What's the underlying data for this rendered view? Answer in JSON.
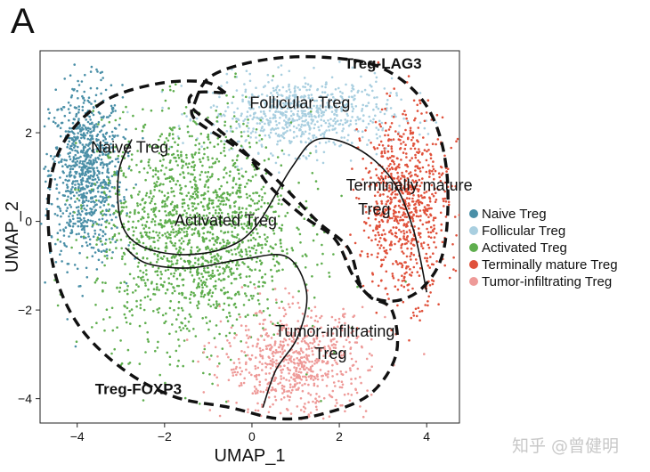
{
  "panel_label": "A",
  "watermark": "知乎 @曾健明",
  "chart_data": {
    "type": "scatter",
    "title": "",
    "xlabel": "UMAP_1",
    "ylabel": "UMAP_2",
    "xlim": [
      -4.85,
      4.75
    ],
    "ylim": [
      -4.55,
      3.85
    ],
    "xticks": [
      -4,
      -2,
      0,
      2,
      4
    ],
    "yticks": [
      -4,
      -2,
      0,
      2
    ],
    "xtick_labels": [
      "−4",
      "−2",
      "0",
      "2",
      "4"
    ],
    "ytick_labels": [
      "−4",
      "−2",
      "0",
      "2"
    ],
    "grid": false,
    "legend_position": "right",
    "series": [
      {
        "name": "Naive Treg",
        "color": "#4a8fa7",
        "center": [
          -3.8,
          1.1
        ],
        "spread": [
          0.55,
          1.3
        ],
        "count": 900
      },
      {
        "name": "Follicular Treg",
        "color": "#a9cfe0",
        "center": [
          1.1,
          2.4
        ],
        "spread": [
          1.4,
          0.55
        ],
        "count": 700
      },
      {
        "name": "Activated Treg",
        "color": "#5fae4e",
        "center": [
          -1.3,
          -0.2
        ],
        "spread": [
          1.5,
          1.7
        ],
        "count": 1700
      },
      {
        "name": "Terminally mature Treg",
        "color": "#e0513b",
        "center": [
          3.5,
          0.4
        ],
        "spread": [
          0.65,
          1.4
        ],
        "count": 800
      },
      {
        "name": "Tumor-infiltrating Treg",
        "color": "#ee9a98",
        "center": [
          1.0,
          -3.2
        ],
        "spread": [
          1.1,
          0.8
        ],
        "count": 700
      }
    ],
    "annotations": [
      {
        "text": "Follicular Treg",
        "x": 1.1,
        "y": 2.55
      },
      {
        "text": "Naive Treg",
        "x": -2.8,
        "y": 1.55
      },
      {
        "text": "Terminally mature",
        "x": 3.6,
        "y": 0.7
      },
      {
        "text": "Treg",
        "x": 2.8,
        "y": 0.15
      },
      {
        "text": "Activated Treg",
        "x": -0.6,
        "y": -0.1
      },
      {
        "text": "Tumor-infiltrating",
        "x": 1.9,
        "y": -2.6
      },
      {
        "text": "Treg",
        "x": 1.8,
        "y": -3.1
      },
      {
        "text": "Treg-LAG3",
        "x": 3.0,
        "y": 3.45,
        "bold": true
      },
      {
        "text": "Treg-FOXP3",
        "x": -2.6,
        "y": -3.9,
        "bold": true
      }
    ],
    "boundaries": [
      {
        "name": "Treg-LAG3",
        "points": [
          [
            -1.3,
            2.7
          ],
          [
            -0.9,
            3.3
          ],
          [
            0.3,
            3.65
          ],
          [
            1.7,
            3.7
          ],
          [
            3.0,
            3.45
          ],
          [
            4.0,
            2.6
          ],
          [
            4.45,
            1.2
          ],
          [
            4.4,
            -0.6
          ],
          [
            3.9,
            -1.5
          ],
          [
            3.2,
            -1.8
          ],
          [
            2.55,
            -1.55
          ],
          [
            2.2,
            -0.6
          ],
          [
            1.5,
            0.0
          ],
          [
            0.5,
            1.0
          ],
          [
            -0.4,
            1.7
          ],
          [
            -1.3,
            2.3
          ]
        ],
        "closed": true
      },
      {
        "name": "Treg-FOXP3",
        "points": [
          [
            -0.6,
            2.9
          ],
          [
            -1.1,
            3.15
          ],
          [
            -2.2,
            3.1
          ],
          [
            -3.4,
            2.7
          ],
          [
            -4.3,
            1.8
          ],
          [
            -4.65,
            0.6
          ],
          [
            -4.55,
            -1.0
          ],
          [
            -4.0,
            -2.3
          ],
          [
            -3.0,
            -3.3
          ],
          [
            -1.8,
            -3.95
          ],
          [
            -0.5,
            -4.2
          ],
          [
            0.6,
            -4.45
          ],
          [
            1.6,
            -4.35
          ],
          [
            2.7,
            -3.9
          ],
          [
            3.3,
            -3.0
          ],
          [
            3.2,
            -2.0
          ],
          [
            2.7,
            -1.7
          ],
          [
            2.3,
            -1.2
          ],
          [
            1.9,
            -0.4
          ],
          [
            1.2,
            0.1
          ],
          [
            0.4,
            0.8
          ],
          [
            -0.1,
            1.5
          ],
          [
            -0.8,
            2.1
          ],
          [
            -1.4,
            2.6
          ],
          [
            -1.3,
            2.9
          ],
          [
            -0.6,
            2.9
          ]
        ],
        "closed": false
      }
    ],
    "trajectories": [
      {
        "points": [
          [
            -2.75,
            1.85
          ],
          [
            -3.05,
            1.1
          ],
          [
            -3.0,
            0.0
          ],
          [
            -2.55,
            -0.55
          ],
          [
            -1.6,
            -0.75
          ],
          [
            -0.6,
            -0.6
          ],
          [
            0.1,
            -0.1
          ],
          [
            0.9,
            1.2
          ],
          [
            1.5,
            1.85
          ],
          [
            2.4,
            1.65
          ],
          [
            3.2,
            0.95
          ],
          [
            3.7,
            -0.2
          ],
          [
            4.0,
            -1.6
          ]
        ]
      },
      {
        "points": [
          [
            -2.9,
            -0.6
          ],
          [
            -2.4,
            -0.95
          ],
          [
            -1.4,
            -1.05
          ],
          [
            -0.2,
            -0.85
          ],
          [
            0.8,
            -0.8
          ],
          [
            1.25,
            -1.6
          ],
          [
            1.05,
            -2.6
          ],
          [
            0.55,
            -3.35
          ],
          [
            0.25,
            -4.2
          ]
        ]
      }
    ]
  }
}
